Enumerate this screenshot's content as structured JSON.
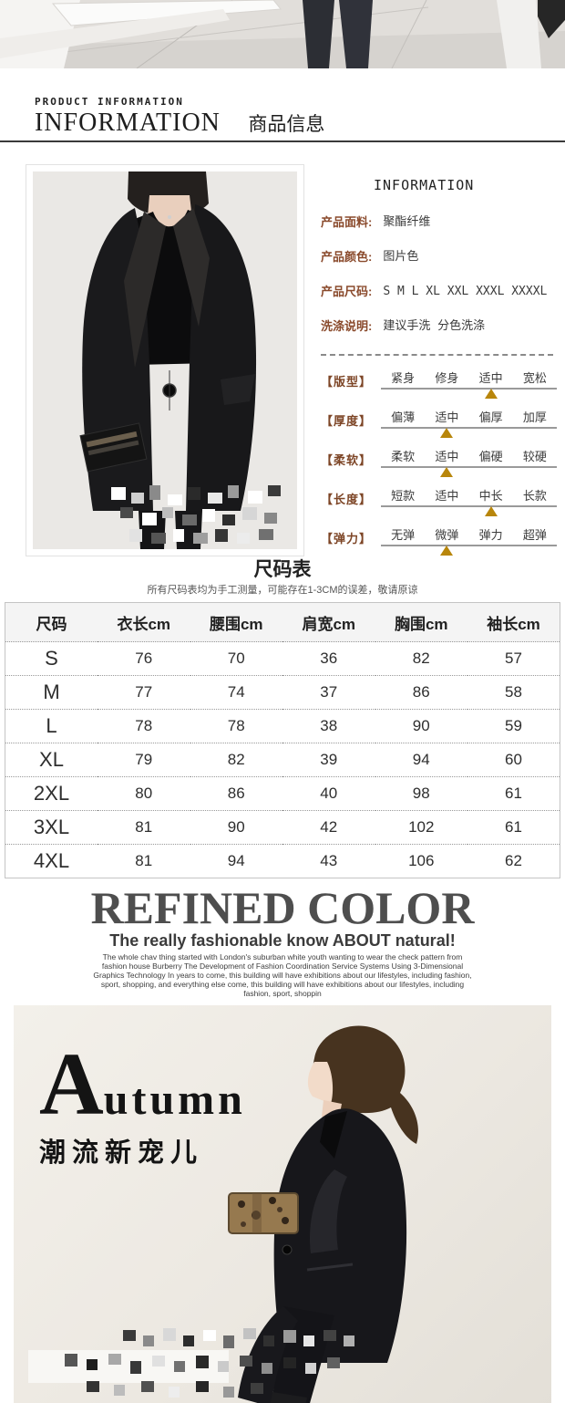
{
  "header": {
    "eyebrow": "PRODUCT INFORMATION",
    "title_en": "INFORMATION",
    "title_zh": "商品信息"
  },
  "info_panel": {
    "title": "INFORMATION",
    "specs": [
      {
        "label": "产品面料:",
        "value": "聚酯纤维"
      },
      {
        "label": "产品颜色:",
        "value": "图片色"
      },
      {
        "label": "产品尺码:",
        "value": "S M L XL XXL XXXL XXXXL"
      },
      {
        "label": "洗涤说明:",
        "value": "建议手洗  分色洗涤"
      }
    ],
    "attributes": [
      {
        "label": "【版型】",
        "options": [
          "紧身",
          "修身",
          "适中",
          "宽松"
        ],
        "selected": 2
      },
      {
        "label": "【厚度】",
        "options": [
          "偏薄",
          "适中",
          "偏厚",
          "加厚"
        ],
        "selected": 1
      },
      {
        "label": "【柔软】",
        "options": [
          "柔软",
          "适中",
          "偏硬",
          "较硬"
        ],
        "selected": 1
      },
      {
        "label": "【长度】",
        "options": [
          "短款",
          "适中",
          "中长",
          "长款"
        ],
        "selected": 2
      },
      {
        "label": "【弹力】",
        "options": [
          "无弹",
          "微弹",
          "弹力",
          "超弹"
        ],
        "selected": 1
      }
    ]
  },
  "size_chart": {
    "title": "尺码表",
    "note": "所有尺码表均为手工测量，可能存在1-3CM的误差，敬请原谅",
    "columns": [
      "尺码",
      "衣长cm",
      "腰围cm",
      "肩宽cm",
      "胸围cm",
      "袖长cm"
    ],
    "rows": [
      [
        "S",
        "76",
        "70",
        "36",
        "82",
        "57"
      ],
      [
        "M",
        "77",
        "74",
        "37",
        "86",
        "58"
      ],
      [
        "L",
        "78",
        "78",
        "38",
        "90",
        "59"
      ],
      [
        "XL",
        "79",
        "82",
        "39",
        "94",
        "60"
      ],
      [
        "2XL",
        "80",
        "86",
        "40",
        "98",
        "61"
      ],
      [
        "3XL",
        "81",
        "90",
        "42",
        "102",
        "61"
      ],
      [
        "4XL",
        "81",
        "94",
        "43",
        "106",
        "62"
      ]
    ]
  },
  "refined": {
    "title": "REFINED COLOR",
    "subtitle": "The really fashionable know ABOUT natural!",
    "body": "The whole chav thing started with London's suburban white youth wanting to wear the check pattern from fashion house Burberry The Development of Fashion Coordination Service Systems Using 3-Dimensional Graphics Technology In years to come, this building will have exhibitions about our lifestyles, including fashion, sport, shopping, and everything else come, this building will have exhibitions about our lifestyles, including fashion, sport, shoppin"
  },
  "bottom_banner": {
    "title_initial": "A",
    "title_rest": "utumn",
    "subtitle": "潮流新宠儿"
  },
  "colors": {
    "label_brown": "#8a4a2c",
    "triangle_gold": "#b8860b",
    "heading_gray": "#4e4e4e",
    "banner_bg": "#ece8e1"
  }
}
